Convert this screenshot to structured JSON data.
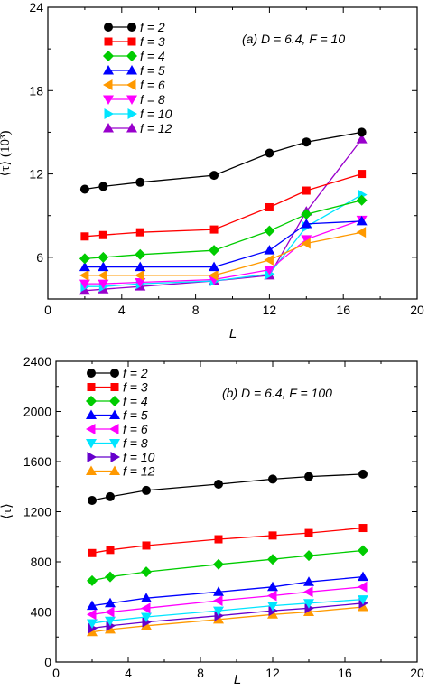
{
  "chart_data": [
    {
      "type": "line",
      "annotation": "(a) D = 6.4, F = 10",
      "xlabel": "L",
      "ylabel": "⟨τ⟩ (10³)",
      "xlim": [
        0,
        20
      ],
      "ylim": [
        3,
        24
      ],
      "xticks": [
        "0",
        "4",
        "8",
        "12",
        "16",
        "20"
      ],
      "yticks": [
        "6",
        "12",
        "18",
        "24"
      ],
      "x": [
        2,
        3,
        5,
        9,
        12,
        14,
        17
      ],
      "legend_position": "top-left",
      "series": [
        {
          "name": "f = 2",
          "color": "#000000",
          "marker": "circle",
          "values": [
            10.9,
            11.1,
            11.4,
            11.9,
            13.5,
            14.3,
            15.0
          ]
        },
        {
          "name": "f = 3",
          "color": "#ff0000",
          "marker": "square",
          "values": [
            7.5,
            7.6,
            7.8,
            8.0,
            9.6,
            10.8,
            12.0
          ]
        },
        {
          "name": "f = 4",
          "color": "#00cc00",
          "marker": "diamond",
          "values": [
            5.9,
            6.0,
            6.2,
            6.5,
            7.9,
            9.1,
            10.1
          ]
        },
        {
          "name": "f = 5",
          "color": "#0000ff",
          "marker": "triangle-up",
          "values": [
            5.3,
            5.3,
            5.3,
            5.3,
            6.5,
            8.4,
            8.6
          ]
        },
        {
          "name": "f = 6",
          "color": "#ff9900",
          "marker": "triangle-left",
          "values": [
            4.7,
            4.7,
            4.7,
            4.7,
            5.8,
            7.0,
            7.8
          ]
        },
        {
          "name": "f = 8",
          "color": "#ff00ff",
          "marker": "triangle-down",
          "values": [
            4.1,
            4.1,
            4.2,
            4.4,
            5.1,
            7.3,
            8.7
          ]
        },
        {
          "name": "f = 10",
          "color": "#00e5ff",
          "marker": "triangle-right",
          "values": [
            3.9,
            3.9,
            4.1,
            4.3,
            4.8,
            8.2,
            10.5
          ]
        },
        {
          "name": "f = 12",
          "color": "#9900cc",
          "marker": "triangle-up",
          "values": [
            3.6,
            3.7,
            3.9,
            4.3,
            4.7,
            9.3,
            14.5
          ]
        }
      ]
    },
    {
      "type": "line",
      "annotation": "(b) D = 6.4, F = 100",
      "xlabel": "L",
      "ylabel": "⟨τ⟩",
      "xlim": [
        0,
        20
      ],
      "ylim": [
        0,
        2400
      ],
      "xticks": [
        "0",
        "4",
        "8",
        "12",
        "16",
        "20"
      ],
      "yticks": [
        "0",
        "400",
        "800",
        "1200",
        "1600",
        "2000",
        "2400"
      ],
      "x": [
        2,
        3,
        5,
        9,
        12,
        14,
        17
      ],
      "legend_position": "top-left",
      "series": [
        {
          "name": "f = 2",
          "color": "#000000",
          "marker": "circle",
          "values": [
            1290,
            1320,
            1370,
            1420,
            1460,
            1480,
            1500
          ]
        },
        {
          "name": "f = 3",
          "color": "#ff0000",
          "marker": "square",
          "values": [
            870,
            895,
            930,
            980,
            1010,
            1030,
            1070
          ]
        },
        {
          "name": "f = 4",
          "color": "#00cc00",
          "marker": "diamond",
          "values": [
            650,
            680,
            720,
            780,
            820,
            850,
            890
          ]
        },
        {
          "name": "f = 5",
          "color": "#0000ff",
          "marker": "triangle-up",
          "values": [
            450,
            470,
            510,
            560,
            600,
            640,
            680
          ]
        },
        {
          "name": "f = 6",
          "color": "#ff00ff",
          "marker": "triangle-left",
          "values": [
            380,
            400,
            430,
            490,
            530,
            560,
            600
          ]
        },
        {
          "name": "f = 8",
          "color": "#00e5ff",
          "marker": "triangle-down",
          "values": [
            310,
            330,
            360,
            410,
            450,
            470,
            500
          ]
        },
        {
          "name": "f = 10",
          "color": "#6600cc",
          "marker": "triangle-right",
          "values": [
            270,
            290,
            320,
            370,
            410,
            430,
            470
          ]
        },
        {
          "name": "f = 12",
          "color": "#ff9900",
          "marker": "triangle-up",
          "values": [
            240,
            260,
            290,
            340,
            380,
            400,
            440
          ]
        }
      ]
    }
  ]
}
